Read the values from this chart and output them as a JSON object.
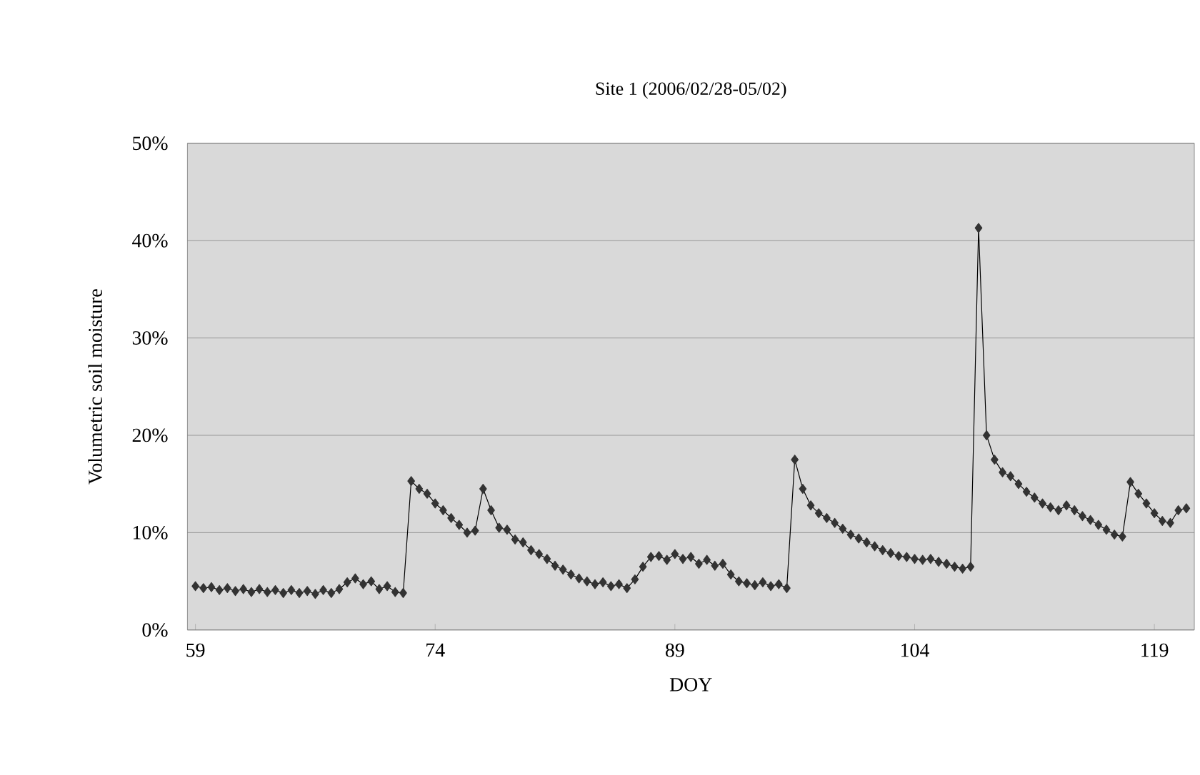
{
  "chart_data": {
    "type": "line",
    "title": "Site 1 (2006/02/28-05/02)",
    "xlabel": "DOY",
    "ylabel": "Volumetric soil moisture",
    "x": [
      59,
      59.5,
      60,
      60.5,
      61,
      61.5,
      62,
      62.5,
      63,
      63.5,
      64,
      64.5,
      65,
      65.5,
      66,
      66.5,
      67,
      67.5,
      68,
      68.5,
      69,
      69.5,
      70,
      70.5,
      71,
      71.5,
      72,
      72.5,
      73,
      73.5,
      74,
      74.5,
      75,
      75.5,
      76,
      76.5,
      77,
      77.5,
      78,
      78.5,
      79,
      79.5,
      80,
      80.5,
      81,
      81.5,
      82,
      82.5,
      83,
      83.5,
      84,
      84.5,
      85,
      85.5,
      86,
      86.5,
      87,
      87.5,
      88,
      88.5,
      89,
      89.5,
      90,
      90.5,
      91,
      91.5,
      92,
      92.5,
      93,
      93.5,
      94,
      94.5,
      95,
      95.5,
      96,
      96.5,
      97,
      97.5,
      98,
      98.5,
      99,
      99.5,
      100,
      100.5,
      101,
      101.5,
      102,
      102.5,
      103,
      103.5,
      104,
      104.5,
      105,
      105.5,
      106,
      106.5,
      107,
      107.5,
      108,
      108.5,
      109,
      109.5,
      110,
      110.5,
      111,
      111.5,
      112,
      112.5,
      113,
      113.5,
      114,
      114.5,
      115,
      115.5,
      116,
      116.5,
      117,
      117.5,
      118,
      118.5,
      119,
      119.5,
      120,
      120.5,
      121
    ],
    "series": [
      {
        "color": "#333333",
        "values": [
          4.5,
          4.3,
          4.4,
          4.1,
          4.3,
          4.0,
          4.2,
          3.9,
          4.2,
          3.9,
          4.1,
          3.8,
          4.1,
          3.8,
          4.0,
          3.7,
          4.1,
          3.8,
          4.2,
          4.9,
          5.3,
          4.7,
          5.0,
          4.2,
          4.5,
          3.9,
          3.8,
          15.3,
          14.5,
          14.0,
          13.0,
          12.3,
          11.5,
          10.8,
          10.0,
          10.2,
          14.5,
          12.3,
          10.5,
          10.3,
          9.3,
          9.0,
          8.2,
          7.8,
          7.3,
          6.6,
          6.2,
          5.7,
          5.3,
          5.0,
          4.7,
          4.9,
          4.5,
          4.7,
          4.3,
          5.2,
          6.5,
          7.5,
          7.6,
          7.2,
          7.8,
          7.3,
          7.5,
          6.8,
          7.2,
          6.6,
          6.8,
          5.7,
          5.0,
          4.8,
          4.6,
          4.9,
          4.5,
          4.7,
          4.3,
          17.5,
          14.5,
          12.8,
          12.0,
          11.5,
          11.0,
          10.4,
          9.8,
          9.4,
          9.0,
          8.6,
          8.2,
          7.9,
          7.6,
          7.5,
          7.3,
          7.2,
          7.3,
          7.0,
          6.8,
          6.5,
          6.3,
          6.5,
          41.3,
          20.0,
          17.5,
          16.2,
          15.8,
          15.0,
          14.2,
          13.6,
          13.0,
          12.6,
          12.3,
          12.8,
          12.3,
          11.7,
          11.3,
          10.8,
          10.3,
          9.8,
          9.6,
          15.2,
          14.0,
          13.0,
          12.0,
          11.2,
          11.0,
          12.3,
          12.5
        ]
      }
    ],
    "xlim": [
      58.5,
      121.5
    ],
    "xticks": [
      59,
      74,
      89,
      104,
      119
    ],
    "ylim": [
      0,
      50
    ],
    "yticks": [
      {
        "value": 0,
        "label": "0%"
      },
      {
        "value": 10,
        "label": "10%"
      },
      {
        "value": 20,
        "label": "20%"
      },
      {
        "value": 30,
        "label": "30%"
      },
      {
        "value": 40,
        "label": "40%"
      },
      {
        "value": 50,
        "label": "50%"
      }
    ],
    "grid": "y",
    "marker": "diamond",
    "line_style": "solid"
  }
}
